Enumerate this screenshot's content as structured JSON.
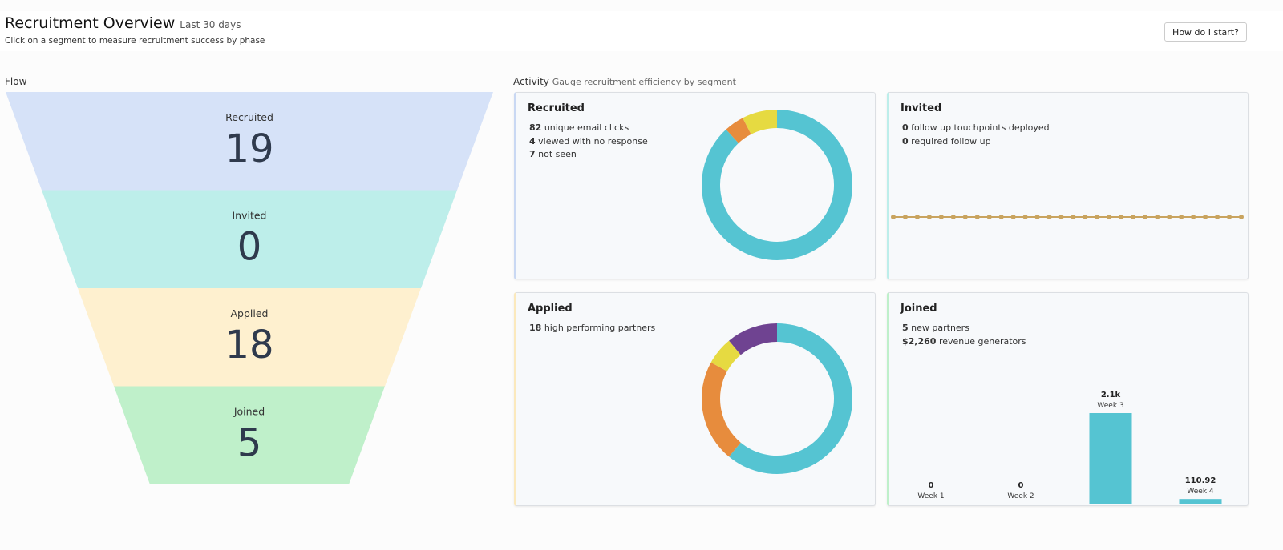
{
  "header": {
    "title": "Recruitment Overview",
    "subtitle": "Last 30 days",
    "description": "Click on a segment to measure recruitment success by phase",
    "help_button": "How do I start?"
  },
  "flow": {
    "title": "Flow",
    "stages": [
      {
        "label": "Recruited",
        "value": 19,
        "color": "#d6e2f8"
      },
      {
        "label": "Invited",
        "value": 0,
        "color": "#bdeeea"
      },
      {
        "label": "Applied",
        "value": 18,
        "color": "#fef0cf"
      },
      {
        "label": "Joined",
        "value": 5,
        "color": "#bff0ca"
      }
    ]
  },
  "activity": {
    "title": "Activity",
    "subtitle": "Gauge recruitment efficiency by segment",
    "cards": [
      {
        "title": "Recruited",
        "accent": "#c9d8f3",
        "stats": [
          {
            "value": 82,
            "text": "unique email clicks"
          },
          {
            "value": 4,
            "text": "viewed with no response"
          },
          {
            "value": 7,
            "text": "not seen"
          }
        ],
        "chart": {
          "type": "donut",
          "values": [
            82,
            4,
            7
          ],
          "colors": [
            "#55c4d2",
            "#e78c3d",
            "#e6da41"
          ]
        }
      },
      {
        "title": "Invited",
        "accent": "#bdeeea",
        "stats": [
          {
            "value": 0,
            "text": "follow up touchpoints deployed"
          },
          {
            "value": 0,
            "text": "required follow up"
          }
        ],
        "chart": {
          "type": "line",
          "color": "#c9a45f",
          "values": [
            0,
            0,
            0,
            0,
            0,
            0,
            0,
            0,
            0,
            0,
            0,
            0,
            0,
            0,
            0,
            0,
            0,
            0,
            0,
            0,
            0,
            0,
            0,
            0,
            0,
            0,
            0,
            0,
            0,
            0
          ]
        }
      },
      {
        "title": "Applied",
        "accent": "#fbe9bd",
        "stats": [
          {
            "value": 18,
            "text": "high performing partners"
          }
        ],
        "chart": {
          "type": "donut",
          "values": [
            61,
            22,
            6,
            11
          ],
          "colors": [
            "#55c4d2",
            "#e78c3d",
            "#e6da41",
            "#6f4391"
          ]
        }
      },
      {
        "title": "Joined",
        "accent": "#bff0ca",
        "stats": [
          {
            "value": 5,
            "text": "new partners"
          },
          {
            "value": "$2,260",
            "text": "revenue generators"
          }
        ],
        "chart": {
          "type": "bar",
          "color": "#55c4d2",
          "categories": [
            "Week 1",
            "Week 2",
            "Week 3",
            "Week 4"
          ],
          "values": [
            0,
            0,
            2149.08,
            110.92
          ],
          "value_labels": [
            "0",
            "0",
            "2.1k",
            "110.92"
          ]
        }
      }
    ]
  }
}
